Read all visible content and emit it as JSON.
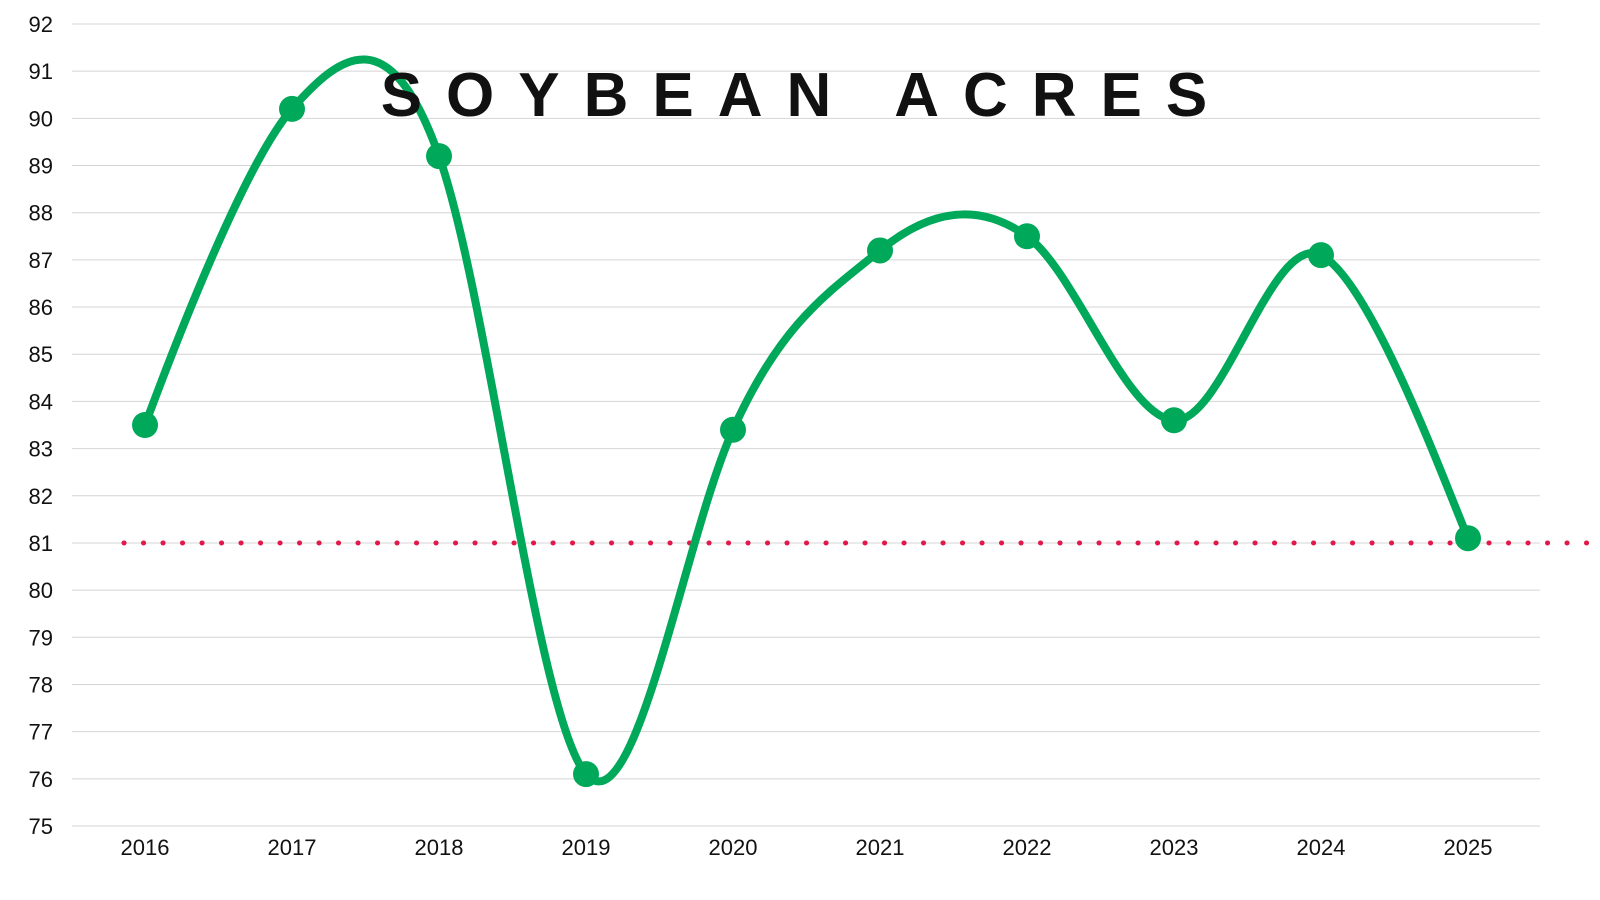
{
  "chart_data": {
    "type": "line",
    "title": "SOYBEAN ACRES",
    "xlabel": "",
    "ylabel": "",
    "categories": [
      "2016",
      "2017",
      "2018",
      "2019",
      "2020",
      "2021",
      "2022",
      "2023",
      "2024",
      "2025"
    ],
    "series": [
      {
        "name": "Soybean Acres",
        "values": [
          83.5,
          90.2,
          89.2,
          76.1,
          83.4,
          87.2,
          87.5,
          83.6,
          87.1,
          81.1
        ],
        "color": "#00a85a",
        "smooth": true,
        "markers": true
      }
    ],
    "reference_line": {
      "value": 81,
      "color": "#e0194a",
      "style": "dotted"
    },
    "ylim": [
      75,
      92
    ],
    "yticks": [
      75,
      76,
      77,
      78,
      79,
      80,
      81,
      82,
      83,
      84,
      85,
      86,
      87,
      88,
      89,
      90,
      91,
      92
    ],
    "grid": true,
    "legend": "none"
  }
}
